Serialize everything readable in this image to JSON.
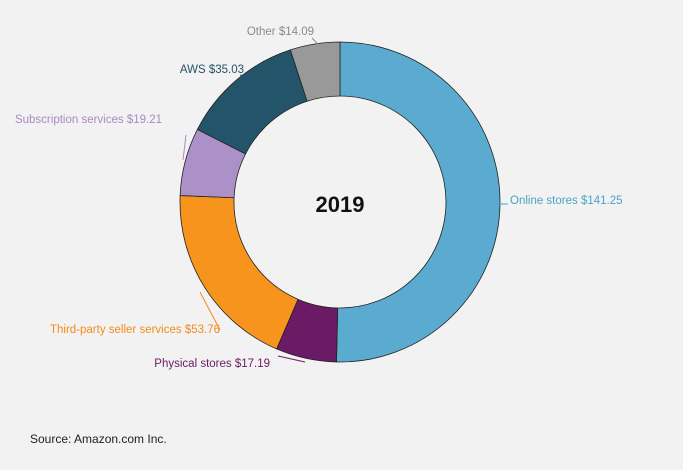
{
  "chart_data": {
    "type": "pie",
    "title": "2019",
    "categories": [
      "Online stores",
      "Physical stores",
      "Third-party seller services",
      "Subscription services",
      "AWS",
      "Other"
    ],
    "values": [
      141.25,
      17.19,
      53.76,
      19.21,
      35.03,
      14.09
    ],
    "labels": [
      "Online stores $141.25",
      "Physical stores $17.19",
      "Third-party seller services $53.76",
      "Subscription services $19.21",
      "AWS $35.03",
      "Other $14.09"
    ],
    "colors": [
      "#5aabcf",
      "#6b1a66",
      "#f7941d",
      "#ab91c8",
      "#245469",
      "#999999"
    ],
    "label_colors": [
      "#4aa3c9",
      "#6b1a66",
      "#f28c1a",
      "#a58bc3",
      "#245469",
      "#8c8c8c"
    ],
    "style": "donut",
    "start": "top, clockwise"
  },
  "source": "Source: Amazon.com Inc."
}
